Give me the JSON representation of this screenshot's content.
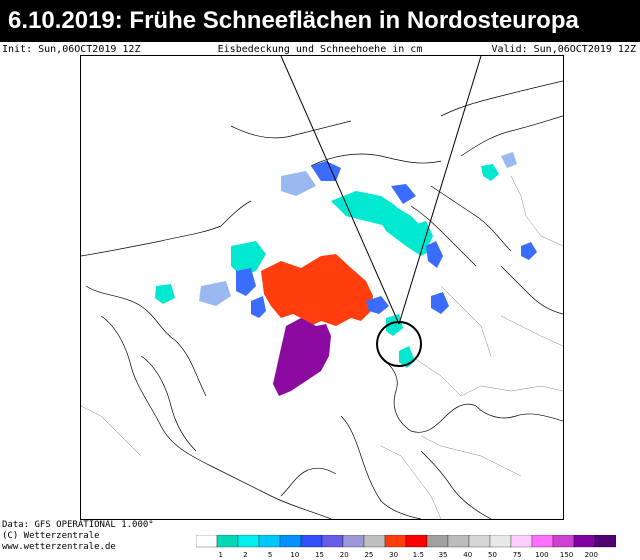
{
  "header": {
    "title": "6.10.2019: Frühe Schneeflächen in Nordosteuropa",
    "init": "Init: Sun,06OCT2019 12Z",
    "subtitle": "Eisbedeckung und Schneehoehe in cm",
    "valid": "Valid: Sun,06OCT2019 12Z"
  },
  "footer": {
    "data": "Data: GFS OPERATIONAL 1.000°",
    "copyright": "(C) Wetterzentrale",
    "url": "www.wetterzentrale.de"
  },
  "legend": {
    "colors": [
      "#ffffff",
      "#00d8b8",
      "#00f0f0",
      "#00c8ff",
      "#0090ff",
      "#3050ff",
      "#6a5ae8",
      "#9a9ad8",
      "#bfbfbf",
      "#ff3d0d",
      "#ff0000",
      "#a0a0a0",
      "#bcbcbc",
      "#d6d6d6",
      "#e8e8e8",
      "#ffd0ff",
      "#ff70ff",
      "#d040d0",
      "#8000a0",
      "#500070"
    ],
    "labels": [
      "1",
      "2",
      "5",
      "10",
      "15",
      "20",
      "25",
      "30",
      "1.5",
      "35",
      "40",
      "50",
      "75",
      "100",
      "150",
      "200"
    ]
  },
  "colors": {
    "ice": "#ff3d0d",
    "greenland": "#8b0aa0",
    "snow_cyan": "#00e8d0",
    "snow_blue": "#3a6cff",
    "snow_light": "#9ab8f0"
  }
}
